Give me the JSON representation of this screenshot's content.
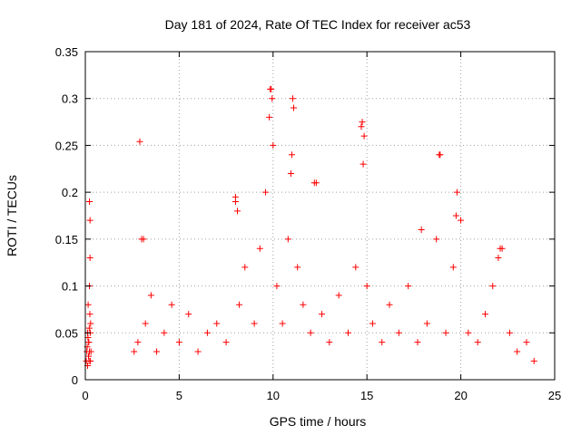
{
  "chart_data": {
    "type": "scatter",
    "title": "Day 181 of 2024, Rate Of TEC Index for receiver ac53",
    "xlabel": "GPS time / hours",
    "ylabel": "ROTI / TECUs",
    "xlim": [
      0,
      25
    ],
    "ylim": [
      0,
      0.35
    ],
    "x_ticks": [
      0,
      5,
      10,
      15,
      20,
      25
    ],
    "y_ticks": [
      0,
      0.05,
      0.1,
      0.15,
      0.2,
      0.25,
      0.3,
      0.35
    ],
    "x_tick_labels": [
      "0",
      "5",
      "10",
      "15",
      "20",
      "25"
    ],
    "y_tick_labels": [
      "0",
      "0.05",
      "0.1",
      "0.15",
      "0.2",
      "0.25",
      "0.3",
      "0.35"
    ],
    "grid": true,
    "legend": "none",
    "marker": "plus",
    "color": "#ff0000",
    "series": [
      {
        "x": [
          0.05,
          0.08,
          0.12,
          0.15,
          0.18,
          0.2,
          0.22,
          0.25,
          0.28,
          0.3,
          0.1,
          0.14,
          0.17,
          0.21,
          0.24,
          0.27,
          0.12,
          0.18,
          0.22,
          0.26,
          2.6,
          2.8,
          3.0,
          3.2,
          3.5,
          3.8,
          4.2,
          4.6,
          5.0,
          5.5,
          6.0,
          6.5,
          7.0,
          7.5,
          8.0,
          8.2,
          8.5,
          9.0,
          9.3,
          9.6,
          9.8,
          9.9,
          10.0,
          10.2,
          10.5,
          10.8,
          11.0,
          11.1,
          11.3,
          11.6,
          12.0,
          12.3,
          12.6,
          13.0,
          13.5,
          14.0,
          14.4,
          14.7,
          14.8,
          15.0,
          15.3,
          15.8,
          16.2,
          16.7,
          17.2,
          17.7,
          18.2,
          18.7,
          18.9,
          19.2,
          19.6,
          19.8,
          20.0,
          20.4,
          20.9,
          21.3,
          21.7,
          22.1,
          22.6,
          23.0,
          23.5,
          23.9,
          2.9,
          3.1,
          9.85,
          9.95,
          10.95,
          11.05,
          14.75,
          14.85,
          18.85,
          19.75,
          0.22,
          0.25,
          8.0,
          8.1,
          12.2,
          17.9,
          22.0,
          22.2
        ],
        "y": [
          0.02,
          0.03,
          0.05,
          0.08,
          0.04,
          0.02,
          0.1,
          0.13,
          0.06,
          0.03,
          0.035,
          0.045,
          0.025,
          0.055,
          0.07,
          0.02,
          0.015,
          0.04,
          0.03,
          0.05,
          0.03,
          0.04,
          0.15,
          0.06,
          0.09,
          0.03,
          0.05,
          0.08,
          0.04,
          0.07,
          0.03,
          0.05,
          0.06,
          0.04,
          0.19,
          0.08,
          0.12,
          0.06,
          0.14,
          0.2,
          0.28,
          0.31,
          0.25,
          0.1,
          0.06,
          0.15,
          0.24,
          0.29,
          0.12,
          0.08,
          0.05,
          0.21,
          0.07,
          0.04,
          0.09,
          0.05,
          0.12,
          0.27,
          0.23,
          0.1,
          0.06,
          0.04,
          0.08,
          0.05,
          0.1,
          0.04,
          0.06,
          0.15,
          0.24,
          0.05,
          0.12,
          0.2,
          0.17,
          0.05,
          0.04,
          0.07,
          0.1,
          0.14,
          0.05,
          0.03,
          0.04,
          0.02,
          0.254,
          0.15,
          0.31,
          0.3,
          0.22,
          0.3,
          0.275,
          0.26,
          0.24,
          0.175,
          0.19,
          0.17,
          0.195,
          0.18,
          0.21,
          0.16,
          0.13,
          0.14
        ]
      }
    ]
  }
}
